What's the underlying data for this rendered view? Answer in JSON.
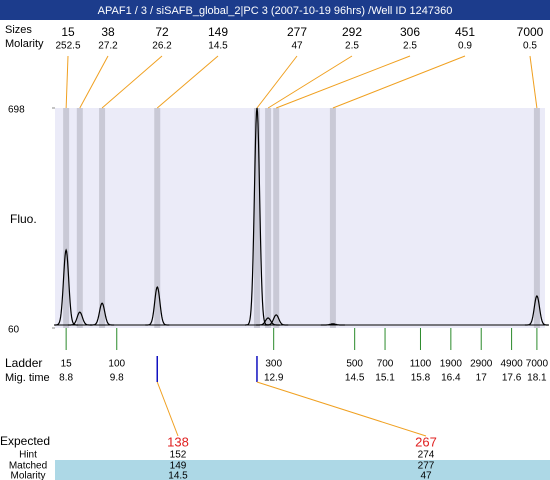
{
  "title": "APAF1 / 3 / siSAFB_global_2|PC 3 (2007-10-19 96hrs) /Well ID 1247360",
  "chart_data": {
    "type": "electropherogram",
    "y_label": "Fluo.",
    "ylim": [
      60,
      698
    ],
    "yticks": [
      60,
      698
    ],
    "xlim": [
      8.58,
      18.26
    ],
    "size_label": "Sizes",
    "molarity_label": "Molarity",
    "peaks": {
      "sizes": [
        15,
        38,
        72,
        149,
        277,
        292,
        306,
        451,
        7000
      ],
      "molarity": [
        252.5,
        27.2,
        26.2,
        14.5,
        47,
        2.5,
        2.5,
        0.9,
        0.5
      ],
      "mig_time": [
        8.8,
        9.07,
        9.51,
        10.6,
        12.57,
        12.79,
        12.95,
        14.07,
        18.1
      ],
      "heights": [
        286,
        106,
        132,
        179,
        698,
        89,
        98,
        72,
        153
      ]
    },
    "ladder": {
      "label": "Ladder",
      "time_label": "Mig. time",
      "sizes": [
        15,
        100,
        300,
        500,
        700,
        1100,
        1900,
        2900,
        4900,
        7000
      ],
      "mig_time": [
        8.8,
        9.8,
        12.9,
        14.5,
        15.1,
        15.8,
        16.4,
        17,
        17.6,
        18.1
      ]
    },
    "expected": {
      "label": "Expected",
      "hint_label": "Hint",
      "matched_label": "Matched",
      "molarity_label": "Molarity",
      "values": [
        138,
        267
      ],
      "hint": [
        152,
        274
      ],
      "matched": [
        149,
        277
      ],
      "molarity": [
        14.5,
        47
      ]
    }
  }
}
